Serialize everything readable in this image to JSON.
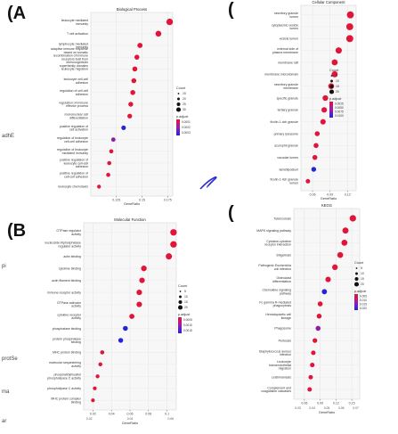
{
  "panel_labels": [
    "(A",
    "(",
    "(B",
    "("
  ],
  "side_notes": {
    "a": "adhE",
    "b": "pi",
    "c": "protSe",
    "d": "ma",
    "e": "ar"
  },
  "chart_data": [
    {
      "type": "scatter",
      "title": "Biological Process",
      "xlabel": "GeneRatio",
      "xlim": [
        0.1,
        0.18
      ],
      "xticks": [
        0.125,
        0.15,
        0.175
      ],
      "categories": [
        "leukocyte mediated immunity",
        "T cell activation",
        "lymphocyte mediated immunity",
        "adaptive immune response based on somatic recombination of immune receptors built from immunoglobulin superfamily domains",
        "leukocyte migration",
        "leukocyte cell-cell adhesion",
        "regulation of cell-cell adhesion",
        "regulation of immune effector process",
        "mononuclear cell differentiation",
        "positive regulation of cell activation",
        "regulation of leukocyte cell-cell adhesion",
        "regulation of leukocyte mediated immunity",
        "positive regulation of leukocyte cell-cell adhesion",
        "positive regulation of cell-cell adhesion",
        "leukocyte chemotaxis"
      ],
      "x": [
        0.177,
        0.166,
        0.148,
        0.145,
        0.143,
        0.142,
        0.141,
        0.139,
        0.138,
        0.132,
        0.122,
        0.12,
        0.118,
        0.117,
        0.108
      ],
      "size": [
        35,
        28,
        22,
        20,
        20,
        20,
        20,
        19,
        18,
        17,
        15,
        14,
        14,
        14,
        12
      ],
      "color": [
        "#e0153a",
        "#e0153a",
        "#e0153a",
        "#e0153a",
        "#e0153a",
        "#e0153a",
        "#e0153a",
        "#e0153a",
        "#e0153a",
        "#2424d8",
        "#8a20a0",
        "#e0153a",
        "#e0153a",
        "#e0153a",
        "#e0153a"
      ],
      "legend": {
        "count_title": "Count",
        "count_labels": [
          "15",
          "20",
          "25",
          "30"
        ],
        "padj_title": "p.adjust",
        "padj_labels": [
          "0.0001",
          "0.0002",
          "0.0003"
        ]
      }
    },
    {
      "type": "scatter",
      "title": "Cellular Component",
      "xlabel": "GeneRatio",
      "xlim": [
        0.04,
        0.135
      ],
      "xticks": [
        0.06,
        0.09,
        0.12
      ],
      "categories": [
        "secretory granule lumen",
        "cytoplasmic vesicle lumen",
        "vesicle lumen",
        "external side of plasma membrane",
        "membrane raft",
        "membrane microdomain",
        "secretory granule membrane",
        "specific granule",
        "tertiary granule",
        "ficolin-1-rich granule",
        "primary lysosome",
        "azurophil granule",
        "vacuolar lumen",
        "lamellipodium",
        "ficolin-1-rich granule lumen"
      ],
      "x": [
        0.125,
        0.124,
        0.124,
        0.105,
        0.098,
        0.098,
        0.092,
        0.082,
        0.08,
        0.078,
        0.068,
        0.066,
        0.064,
        0.062,
        0.052
      ],
      "size": [
        40,
        40,
        40,
        32,
        30,
        30,
        28,
        26,
        25,
        24,
        20,
        20,
        20,
        19,
        16
      ],
      "color": [
        "#e0153a",
        "#e0153a",
        "#e0153a",
        "#e0153a",
        "#e0153a",
        "#e0153a",
        "#e0153a",
        "#e0153a",
        "#e0153a",
        "#e0153a",
        "#e0153a",
        "#e0153a",
        "#e0153a",
        "#2424d8",
        "#e0153a"
      ],
      "legend": {
        "count_title": "Count",
        "count_labels": [
          "5",
          "10",
          "15",
          "20"
        ],
        "padj_title": "p.adjust",
        "padj_labels": [
          "0.0025",
          "0.0050",
          "0.0075",
          "0.0100"
        ]
      }
    },
    {
      "type": "scatter",
      "title": "Molecular Function",
      "xlabel": "GeneRatio",
      "xlim": [
        0.01,
        0.11
      ],
      "xticks": [
        0.02,
        0.04,
        0.06,
        0.08,
        0.1
      ],
      "secondary_xticks": [
        "0.02",
        "0.04",
        "0.06"
      ],
      "categories": [
        "GTPase regulator activity",
        "nucleoside-triphosphatase regulator activity",
        "actin binding",
        "cytokine binding",
        "actin filament binding",
        "immune receptor activity",
        "GTPase activator activity",
        "cytokine receptor activity",
        "phosphatase binding",
        "protein phosphatase binding",
        "MHC protein binding",
        "molecular sequestering activity",
        "phosphatidylinositol phospholipase C activity",
        "phospholipase C activity",
        "MHC protein complex binding"
      ],
      "x": [
        0.107,
        0.107,
        0.102,
        0.075,
        0.073,
        0.07,
        0.07,
        0.062,
        0.055,
        0.05,
        0.03,
        0.028,
        0.025,
        0.022,
        0.02
      ],
      "size": [
        35,
        35,
        32,
        26,
        25,
        25,
        25,
        22,
        20,
        19,
        14,
        13,
        12,
        12,
        11
      ],
      "color": [
        "#e0153a",
        "#e0153a",
        "#e0153a",
        "#e0153a",
        "#e0153a",
        "#e0153a",
        "#e0153a",
        "#e0153a",
        "#2424d8",
        "#2424d8",
        "#e0153a",
        "#e0153a",
        "#e0153a",
        "#e0153a",
        "#e0153a"
      ],
      "legend": {
        "count_title": "Count",
        "count_labels": [
          "5",
          "10",
          "15",
          "20"
        ],
        "padj_title": "p.adjust",
        "padj_labels": [
          "0.0005",
          "0.0010",
          "0.0015"
        ]
      }
    },
    {
      "type": "scatter",
      "title": "KEGG",
      "xlabel": "GeneRatio",
      "xlim": [
        0.04,
        0.165
      ],
      "xticks": [
        0.06,
        0.09,
        0.12,
        0.15
      ],
      "secondary_xticks": [
        "0.03",
        "0.04",
        "0.05",
        "0.06",
        "0.07"
      ],
      "categories": [
        "Tuberculosis",
        "MAPK signaling pathway",
        "Cytokine-cytokine receptor interaction",
        "Shigellosis",
        "Pathogenic Escherichia coli infection",
        "Osteoclast differentiation",
        "Chemokine signaling pathway",
        "Fc gamma R-mediated phagocytosis",
        "Hematopoietic cell lineage",
        "Phagosome",
        "Pertussis",
        "Staphylococcus aureus infection",
        "Leukocyte transendothelial migration",
        "Leishmaniasis",
        "Complement and coagulation cascades"
      ],
      "x": [
        0.152,
        0.138,
        0.136,
        0.128,
        0.118,
        0.105,
        0.098,
        0.09,
        0.088,
        0.086,
        0.08,
        0.077,
        0.075,
        0.072,
        0.07
      ],
      "size": [
        34,
        30,
        30,
        28,
        26,
        24,
        22,
        20,
        20,
        20,
        18,
        17,
        17,
        16,
        16
      ],
      "color": [
        "#e0153a",
        "#e0153a",
        "#e0153a",
        "#e0153a",
        "#e0153a",
        "#e0153a",
        "#2424d8",
        "#e0153a",
        "#e0153a",
        "#8a20a0",
        "#e0153a",
        "#e0153a",
        "#e0153a",
        "#e0153a",
        "#e0153a"
      ],
      "legend": {
        "count_title": "Count",
        "count_labels": [
          "5",
          "10",
          "15",
          "20"
        ],
        "padj_title": "p.adjust",
        "padj_labels": [
          "0.005",
          "0.010",
          "0.015",
          "0.020"
        ]
      }
    }
  ]
}
